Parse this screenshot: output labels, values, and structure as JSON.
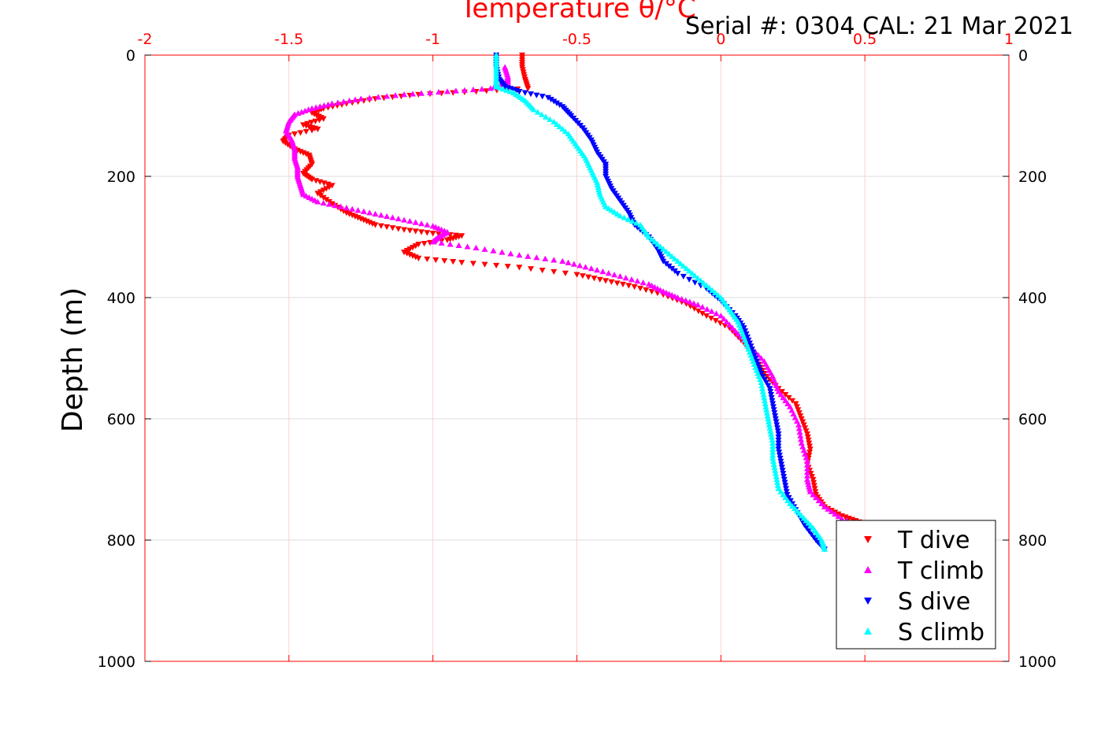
{
  "chart_data": {
    "type": "scatter",
    "title_left": "Temperature θ/°C",
    "title_right": "Serial #: 0304  CAL: 21 Mar 2021",
    "ylabel": "Depth (m)",
    "xlim": [
      -2,
      1
    ],
    "ylim": [
      0,
      1000
    ],
    "y_reversed": true,
    "x_ticks": [
      "-2",
      "-1.5",
      "-1",
      "-0.5",
      "0",
      "0.5",
      "1"
    ],
    "y_ticks": [
      "0",
      "200",
      "400",
      "600",
      "800",
      "1000"
    ],
    "grid": true,
    "legend_position": "bottom-right",
    "series": [
      {
        "name": "T dive",
        "color": "#ff0000",
        "marker": "triangle-down",
        "points": [
          [
            -0.69,
            0
          ],
          [
            -0.69,
            20
          ],
          [
            -0.68,
            40
          ],
          [
            -0.67,
            55
          ],
          [
            -0.85,
            60
          ],
          [
            -1.05,
            65
          ],
          [
            -1.2,
            72
          ],
          [
            -1.3,
            80
          ],
          [
            -1.38,
            88
          ],
          [
            -1.42,
            95
          ],
          [
            -1.38,
            105
          ],
          [
            -1.45,
            115
          ],
          [
            -1.4,
            122
          ],
          [
            -1.5,
            132
          ],
          [
            -1.52,
            142
          ],
          [
            -1.48,
            155
          ],
          [
            -1.43,
            165
          ],
          [
            -1.42,
            180
          ],
          [
            -1.45,
            195
          ],
          [
            -1.42,
            205
          ],
          [
            -1.35,
            215
          ],
          [
            -1.4,
            228
          ],
          [
            -1.35,
            245
          ],
          [
            -1.3,
            260
          ],
          [
            -1.25,
            270
          ],
          [
            -1.2,
            280
          ],
          [
            -1.1,
            288
          ],
          [
            -1.0,
            294
          ],
          [
            -0.9,
            298
          ],
          [
            -0.95,
            305
          ],
          [
            -1.05,
            312
          ],
          [
            -1.1,
            325
          ],
          [
            -1.05,
            335
          ],
          [
            -0.9,
            342
          ],
          [
            -0.7,
            350
          ],
          [
            -0.5,
            362
          ],
          [
            -0.4,
            372
          ],
          [
            -0.3,
            382
          ],
          [
            -0.2,
            395
          ],
          [
            -0.12,
            410
          ],
          [
            -0.05,
            430
          ],
          [
            0.03,
            450
          ],
          [
            0.08,
            475
          ],
          [
            0.12,
            500
          ],
          [
            0.15,
            525
          ],
          [
            0.2,
            550
          ],
          [
            0.26,
            575
          ],
          [
            0.28,
            600
          ],
          [
            0.3,
            625
          ],
          [
            0.31,
            650
          ],
          [
            0.3,
            675
          ],
          [
            0.32,
            700
          ],
          [
            0.33,
            725
          ],
          [
            0.36,
            745
          ],
          [
            0.42,
            760
          ],
          [
            0.48,
            770
          ]
        ]
      },
      {
        "name": "T climb",
        "color": "#ff00ff",
        "marker": "triangle-up",
        "points": [
          [
            -0.75,
            20
          ],
          [
            -0.74,
            35
          ],
          [
            -0.74,
            45
          ],
          [
            -0.8,
            55
          ],
          [
            -0.95,
            60
          ],
          [
            -1.1,
            65
          ],
          [
            -1.25,
            72
          ],
          [
            -1.35,
            80
          ],
          [
            -1.42,
            88
          ],
          [
            -1.48,
            98
          ],
          [
            -1.5,
            110
          ],
          [
            -1.51,
            125
          ],
          [
            -1.49,
            140
          ],
          [
            -1.48,
            155
          ],
          [
            -1.48,
            170
          ],
          [
            -1.47,
            185
          ],
          [
            -1.47,
            200
          ],
          [
            -1.46,
            215
          ],
          [
            -1.45,
            230
          ],
          [
            -1.4,
            242
          ],
          [
            -1.3,
            252
          ],
          [
            -1.2,
            262
          ],
          [
            -1.1,
            272
          ],
          [
            -1.0,
            282
          ],
          [
            -0.95,
            292
          ],
          [
            -0.98,
            300
          ],
          [
            -1.0,
            308
          ],
          [
            -0.85,
            318
          ],
          [
            -0.7,
            330
          ],
          [
            -0.55,
            340
          ],
          [
            -0.45,
            352
          ],
          [
            -0.35,
            365
          ],
          [
            -0.25,
            378
          ],
          [
            -0.2,
            390
          ],
          [
            -0.15,
            400
          ],
          [
            -0.08,
            412
          ],
          [
            0.0,
            430
          ],
          [
            0.05,
            455
          ],
          [
            0.1,
            480
          ],
          [
            0.15,
            505
          ],
          [
            0.18,
            530
          ],
          [
            0.2,
            555
          ],
          [
            0.24,
            580
          ],
          [
            0.27,
            610
          ],
          [
            0.28,
            640
          ],
          [
            0.3,
            670
          ],
          [
            0.3,
            700
          ],
          [
            0.31,
            720
          ],
          [
            0.36,
            745
          ],
          [
            0.42,
            765
          ],
          [
            0.5,
            780
          ]
        ]
      },
      {
        "name": "S dive",
        "color": "#0000ff",
        "marker": "triangle-down",
        "points": [
          [
            -0.78,
            0
          ],
          [
            -0.78,
            20
          ],
          [
            -0.77,
            40
          ],
          [
            -0.75,
            52
          ],
          [
            -0.7,
            60
          ],
          [
            -0.6,
            70
          ],
          [
            -0.55,
            85
          ],
          [
            -0.52,
            100
          ],
          [
            -0.48,
            120
          ],
          [
            -0.45,
            140
          ],
          [
            -0.43,
            160
          ],
          [
            -0.4,
            180
          ],
          [
            -0.4,
            200
          ],
          [
            -0.38,
            220
          ],
          [
            -0.35,
            240
          ],
          [
            -0.32,
            260
          ],
          [
            -0.3,
            280
          ],
          [
            -0.25,
            300
          ],
          [
            -0.22,
            320
          ],
          [
            -0.2,
            340
          ],
          [
            -0.15,
            360
          ],
          [
            -0.05,
            385
          ],
          [
            0.0,
            405
          ],
          [
            0.05,
            430
          ],
          [
            0.08,
            450
          ],
          [
            0.1,
            475
          ],
          [
            0.12,
            500
          ],
          [
            0.14,
            525
          ],
          [
            0.17,
            550
          ],
          [
            0.18,
            575
          ],
          [
            0.19,
            600
          ],
          [
            0.2,
            625
          ],
          [
            0.2,
            650
          ],
          [
            0.21,
            675
          ],
          [
            0.22,
            700
          ],
          [
            0.23,
            725
          ],
          [
            0.26,
            750
          ],
          [
            0.29,
            775
          ],
          [
            0.33,
            800
          ],
          [
            0.36,
            815
          ]
        ]
      },
      {
        "name": "S climb",
        "color": "#00ffff",
        "marker": "triangle-up",
        "points": [
          [
            -0.78,
            0
          ],
          [
            -0.78,
            20
          ],
          [
            -0.78,
            40
          ],
          [
            -0.78,
            52
          ],
          [
            -0.72,
            62
          ],
          [
            -0.68,
            75
          ],
          [
            -0.65,
            90
          ],
          [
            -0.58,
            110
          ],
          [
            -0.53,
            130
          ],
          [
            -0.5,
            150
          ],
          [
            -0.47,
            170
          ],
          [
            -0.45,
            190
          ],
          [
            -0.43,
            210
          ],
          [
            -0.42,
            230
          ],
          [
            -0.4,
            250
          ],
          [
            -0.35,
            265
          ],
          [
            -0.28,
            280
          ],
          [
            -0.25,
            300
          ],
          [
            -0.2,
            320
          ],
          [
            -0.15,
            340
          ],
          [
            -0.1,
            360
          ],
          [
            -0.05,
            380
          ],
          [
            0.0,
            400
          ],
          [
            0.03,
            420
          ],
          [
            0.06,
            440
          ],
          [
            0.08,
            465
          ],
          [
            0.1,
            490
          ],
          [
            0.12,
            515
          ],
          [
            0.14,
            540
          ],
          [
            0.15,
            565
          ],
          [
            0.16,
            590
          ],
          [
            0.17,
            615
          ],
          [
            0.18,
            640
          ],
          [
            0.18,
            665
          ],
          [
            0.19,
            690
          ],
          [
            0.2,
            715
          ],
          [
            0.24,
            740
          ],
          [
            0.28,
            760
          ],
          [
            0.32,
            780
          ],
          [
            0.35,
            800
          ],
          [
            0.36,
            815
          ]
        ]
      }
    ]
  }
}
